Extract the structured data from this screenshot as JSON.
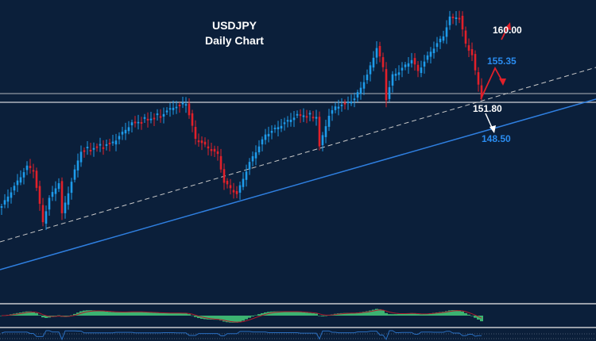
{
  "chart_data": {
    "type": "candlestick",
    "title": "USDJPY",
    "subtitle": "Daily Chart",
    "xlabel": "",
    "ylabel": "",
    "ylim": [
      145.25,
      157.15
    ],
    "grid": false,
    "colors": {
      "background": "#0b1f3a",
      "up": "#1e9bea",
      "down": "#e0202a",
      "trendline": "#2f7fe0",
      "dashed": "#c8c8c8",
      "level": "#b0b4bc",
      "macd_hist": "#3cb371",
      "macd_signal": "#b01c2c",
      "lower_line": "#2a6fc0",
      "label_white": "#ffffff",
      "label_blue": "#2a8cf0",
      "arrow_red": "#e0202a"
    },
    "close_keypoints": [
      [
        0,
        145.25
      ],
      [
        8,
        147.75
      ],
      [
        10,
        147.5
      ],
      [
        13,
        144.25
      ],
      [
        15,
        145.75
      ],
      [
        18,
        146.75
      ],
      [
        19,
        144.75
      ],
      [
        23,
        147.5
      ],
      [
        25,
        148.75
      ],
      [
        35,
        149.25
      ],
      [
        41,
        150.5
      ],
      [
        50,
        151.0
      ],
      [
        54,
        151.5
      ],
      [
        58,
        151.75
      ],
      [
        61,
        149.5
      ],
      [
        68,
        148.5
      ],
      [
        70,
        146.75
      ],
      [
        74,
        146.0
      ],
      [
        78,
        148.0
      ],
      [
        83,
        149.75
      ],
      [
        89,
        150.5
      ],
      [
        93,
        151.0
      ],
      [
        99,
        150.85
      ],
      [
        100,
        149.0
      ],
      [
        103,
        151.0
      ],
      [
        105,
        151.5
      ],
      [
        111,
        152.0
      ],
      [
        115,
        153.5
      ],
      [
        118,
        155.25
      ],
      [
        120,
        154.0
      ],
      [
        121,
        152.0
      ],
      [
        123,
        153.5
      ],
      [
        125,
        153.75
      ],
      [
        129,
        154.5
      ],
      [
        131,
        153.75
      ],
      [
        135,
        155.0
      ],
      [
        139,
        156.0
      ],
      [
        141,
        157.15
      ],
      [
        144,
        157.15
      ],
      [
        146,
        155.5
      ],
      [
        148,
        154.75
      ],
      [
        149,
        153.75
      ],
      [
        151,
        152.15
      ]
    ],
    "levels": [
      {
        "label": "160.00",
        "price": 160.0,
        "kind": "target"
      },
      {
        "label": "155.35",
        "price": 155.35,
        "kind": "resistance"
      },
      {
        "label": "151.80",
        "price": 151.8,
        "kind": "support"
      },
      {
        "label": "148.50",
        "price": 148.5,
        "kind": "support-trendline"
      }
    ],
    "indicators": [
      "MACD histogram with signal line",
      "lower oscillator line"
    ]
  }
}
